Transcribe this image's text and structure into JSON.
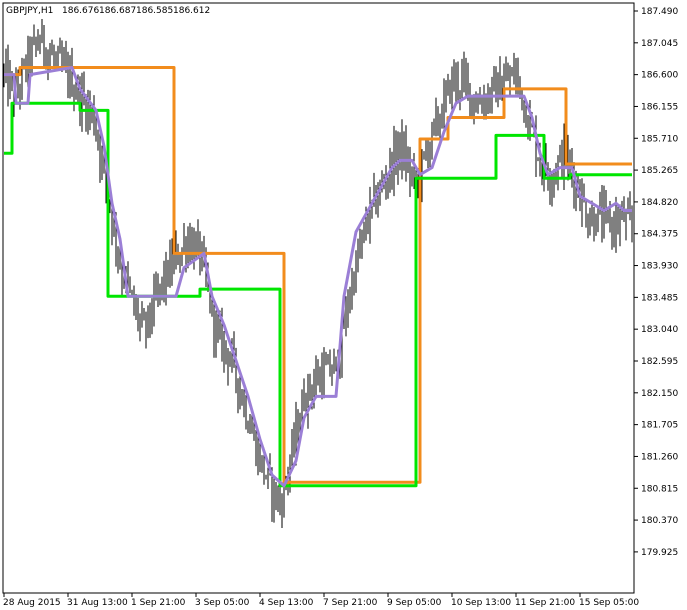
{
  "header": {
    "symbol": "GBPJPY,H1",
    "open": "186.676",
    "high": "186.687",
    "low": "186.585",
    "close": "186.612"
  },
  "colors": {
    "background": "#ffffff",
    "price_bars": "#000000",
    "upper_band": "#f28c1c",
    "lower_band": "#00e600",
    "middle_line": "#9b7fd6",
    "axis": "#000000"
  },
  "chart_data": {
    "type": "line",
    "title": "",
    "xlabel": "",
    "ylabel": "",
    "ylim": [
      179.7,
      187.6
    ],
    "y_ticks": [
      "187.490",
      "187.045",
      "186.600",
      "186.155",
      "185.710",
      "185.265",
      "184.820",
      "184.375",
      "183.930",
      "183.485",
      "183.040",
      "182.595",
      "182.150",
      "181.705",
      "181.260",
      "180.815",
      "180.370",
      "179.925"
    ],
    "x_ticks": [
      {
        "label": "28 Aug 2015",
        "bar": 0
      },
      {
        "label": "31 Aug 13:00",
        "bar": 32
      },
      {
        "label": "1 Sep 21:00",
        "bar": 64
      },
      {
        "label": "3 Sep 05:00",
        "bar": 96
      },
      {
        "label": "4 Sep 13:00",
        "bar": 128
      },
      {
        "label": "7 Sep 21:00",
        "bar": 160
      },
      {
        "label": "9 Sep 05:00",
        "bar": 192
      },
      {
        "label": "10 Sep 13:00",
        "bar": 224
      },
      {
        "label": "11 Sep 21:00",
        "bar": 256
      },
      {
        "label": "15 Sep 05:00",
        "bar": 288
      }
    ],
    "bar_count": 315,
    "price_anchors": [
      [
        0,
        186.6
      ],
      [
        6,
        186.3
      ],
      [
        12,
        186.8
      ],
      [
        18,
        187.1
      ],
      [
        25,
        186.8
      ],
      [
        32,
        186.6
      ],
      [
        38,
        186.3
      ],
      [
        45,
        186.0
      ],
      [
        52,
        184.9
      ],
      [
        58,
        184.0
      ],
      [
        64,
        183.4
      ],
      [
        70,
        183.0
      ],
      [
        78,
        183.6
      ],
      [
        85,
        184.0
      ],
      [
        92,
        184.3
      ],
      [
        98,
        184.1
      ],
      [
        106,
        183.0
      ],
      [
        114,
        182.6
      ],
      [
        120,
        182.0
      ],
      [
        126,
        181.4
      ],
      [
        132,
        180.9
      ],
      [
        138,
        180.6
      ],
      [
        144,
        181.3
      ],
      [
        150,
        182.1
      ],
      [
        158,
        182.4
      ],
      [
        166,
        182.5
      ],
      [
        174,
        183.7
      ],
      [
        182,
        184.6
      ],
      [
        190,
        185.1
      ],
      [
        198,
        185.6
      ],
      [
        206,
        185.0
      ],
      [
        212,
        185.6
      ],
      [
        218,
        186.0
      ],
      [
        224,
        186.5
      ],
      [
        230,
        186.5
      ],
      [
        236,
        186.2
      ],
      [
        242,
        186.3
      ],
      [
        250,
        186.5
      ],
      [
        256,
        186.6
      ],
      [
        262,
        186.0
      ],
      [
        268,
        185.4
      ],
      [
        274,
        185.2
      ],
      [
        280,
        185.5
      ],
      [
        286,
        185.1
      ],
      [
        292,
        184.6
      ],
      [
        298,
        184.6
      ],
      [
        304,
        184.5
      ],
      [
        310,
        184.6
      ],
      [
        314,
        184.4
      ]
    ],
    "series": [
      {
        "color": "#f28c1c",
        "points": [
          [
            0,
            186.6
          ],
          [
            8,
            186.6
          ],
          [
            8,
            186.7
          ],
          [
            85,
            186.7
          ],
          [
            85,
            184.1
          ],
          [
            140,
            184.1
          ],
          [
            140,
            180.85
          ],
          [
            142,
            180.85
          ],
          [
            142,
            180.9
          ],
          [
            208,
            180.9
          ],
          [
            208,
            185.7
          ],
          [
            222,
            185.7
          ],
          [
            222,
            186.0
          ],
          [
            250,
            186.0
          ],
          [
            250,
            186.4
          ],
          [
            281,
            186.4
          ],
          [
            281,
            185.35
          ],
          [
            314,
            185.35
          ]
        ]
      },
      {
        "color": "#00e600",
        "points": [
          [
            0,
            185.5
          ],
          [
            4,
            185.5
          ],
          [
            4,
            186.2
          ],
          [
            38,
            186.2
          ],
          [
            38,
            186.1
          ],
          [
            52,
            186.1
          ],
          [
            52,
            183.5
          ],
          [
            98,
            183.5
          ],
          [
            98,
            183.6
          ],
          [
            138,
            183.6
          ],
          [
            138,
            180.85
          ],
          [
            206,
            180.85
          ],
          [
            206,
            185.15
          ],
          [
            246,
            185.15
          ],
          [
            246,
            185.75
          ],
          [
            270,
            185.75
          ],
          [
            270,
            185.15
          ],
          [
            283,
            185.15
          ],
          [
            283,
            185.2
          ],
          [
            314,
            185.2
          ]
        ]
      },
      {
        "color": "#9b7fd6",
        "points": [
          [
            0,
            186.6
          ],
          [
            5,
            186.6
          ],
          [
            6,
            186.2
          ],
          [
            12,
            186.2
          ],
          [
            13,
            186.6
          ],
          [
            34,
            186.7
          ],
          [
            38,
            186.4
          ],
          [
            46,
            186.1
          ],
          [
            50,
            185.6
          ],
          [
            54,
            184.8
          ],
          [
            58,
            184.3
          ],
          [
            62,
            183.5
          ],
          [
            86,
            183.5
          ],
          [
            90,
            183.9
          ],
          [
            100,
            184.1
          ],
          [
            104,
            183.5
          ],
          [
            110,
            183.1
          ],
          [
            116,
            182.6
          ],
          [
            122,
            182.1
          ],
          [
            128,
            181.5
          ],
          [
            134,
            181.0
          ],
          [
            140,
            180.85
          ],
          [
            146,
            181.2
          ],
          [
            150,
            181.8
          ],
          [
            156,
            182.1
          ],
          [
            166,
            182.1
          ],
          [
            170,
            183.5
          ],
          [
            176,
            184.4
          ],
          [
            182,
            184.7
          ],
          [
            188,
            185.0
          ],
          [
            194,
            185.3
          ],
          [
            198,
            185.4
          ],
          [
            204,
            185.4
          ],
          [
            208,
            185.2
          ],
          [
            214,
            185.3
          ],
          [
            220,
            185.8
          ],
          [
            226,
            186.2
          ],
          [
            232,
            186.3
          ],
          [
            246,
            186.3
          ],
          [
            254,
            186.3
          ],
          [
            260,
            186.3
          ],
          [
            264,
            186.0
          ],
          [
            268,
            185.5
          ],
          [
            272,
            185.2
          ],
          [
            278,
            185.3
          ],
          [
            284,
            185.3
          ],
          [
            288,
            184.9
          ],
          [
            294,
            184.8
          ],
          [
            300,
            184.7
          ],
          [
            306,
            184.8
          ],
          [
            310,
            184.7
          ],
          [
            314,
            184.7
          ]
        ]
      }
    ]
  }
}
